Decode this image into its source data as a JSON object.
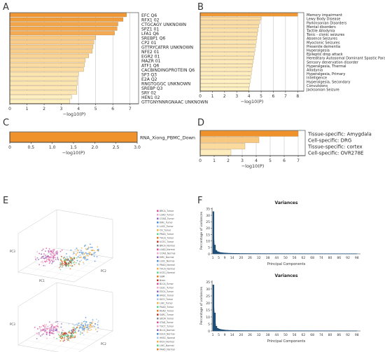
{
  "panels": {
    "A": "A",
    "B": "B",
    "C": "C",
    "D": "D",
    "E": "E",
    "F": "F"
  },
  "colors": {
    "dark_orange": "#f0922b",
    "light_yellow": "#fff7cc",
    "pca_blue": "#1f4e79"
  },
  "chart_data": [
    {
      "panel": "A",
      "type": "bar",
      "orientation": "horizontal",
      "categories": [
        "EFC Q6",
        "RFX1 02",
        "CTGCAGY UNKNOWN",
        "SPZ1 01",
        "LFA1 Q6",
        "SREBP1 Q6",
        "CP2 01",
        "GTTRYCATRR UNKNOWN",
        "NFE2 01",
        "EGR2 01",
        "MAZR 01",
        "ATF1 Q6",
        "CACBINDINGPROTEIN Q6",
        "SP3 Q3",
        "E2A Q2",
        "RNGTGGGC UNKNOWN",
        "SREBP Q3",
        "SRY 02",
        "HEN1 02",
        "GTTGNYNNRGNAAC UNKNOWN"
      ],
      "values": [
        6.8,
        6.6,
        6.3,
        6.25,
        6.1,
        5.0,
        4.9,
        4.85,
        4.8,
        4.6,
        4.4,
        4.35,
        4.3,
        4.0,
        3.95,
        3.95,
        3.9,
        3.9,
        3.6,
        3.5
      ],
      "xlabel": "−log10(P)",
      "xlim": [
        0,
        7.5
      ],
      "xticks": [
        "0",
        "1",
        "2",
        "3",
        "4",
        "5",
        "6",
        "7"
      ]
    },
    {
      "panel": "B",
      "type": "bar",
      "orientation": "horizontal",
      "categories": [
        "Memory impairment",
        "Lewy Body Disease",
        "Parkinsonian Disorders",
        "Mental disorders",
        "Tactile Allodynia",
        "Tonic - clonic seizures",
        "Absence Seizures",
        "Myoclonic Seizures",
        "Presenile dementia",
        "Hyperalgesia",
        "Epileptic drop attack",
        "Hereditary Autosomal Dominant Spastic Paraplegia",
        "Sensory denervation disorder",
        "Hyperalgesia, Thermal",
        "Allodynia",
        "Hyperalgesia, Primary",
        "Intelligence",
        "Hyperalgesia, Secondary",
        "Convulsions",
        "Jacksonian Seizure"
      ],
      "values": [
        8.0,
        5.0,
        4.9,
        4.8,
        4.75,
        4.7,
        4.65,
        4.6,
        4.55,
        4.5,
        4.45,
        4.4,
        4.35,
        4.3,
        4.25,
        4.2,
        4.15,
        4.1,
        4.05,
        4.0
      ],
      "xlabel": "−log10(P)",
      "xlim": [
        0,
        8.5
      ],
      "xticks": [
        "0",
        "1",
        "2",
        "3",
        "4",
        "5",
        "6",
        "7",
        "8"
      ]
    },
    {
      "panel": "C",
      "type": "bar",
      "orientation": "horizontal",
      "categories": [
        "RNA_Xiong_PBMC_Down"
      ],
      "values": [
        3.0
      ],
      "xlabel": "−log10(P)",
      "xlim": [
        0,
        3.0
      ],
      "xticks": [
        "0",
        "0.5",
        "1.0",
        "1.5",
        "2.0",
        "2.5",
        "3.0"
      ]
    },
    {
      "panel": "D",
      "type": "bar",
      "orientation": "horizontal",
      "categories": [
        "Tissue-specific: Amygdala",
        "Cell-specific: DRG",
        "Tissue-specific: cortex",
        "Cell-specific: OVR278E"
      ],
      "values": [
        7.0,
        4.2,
        3.2,
        2.2
      ],
      "xlabel": "−log10(P)",
      "xlim": [
        0,
        7.5
      ],
      "xticks": [
        "0",
        "1",
        "2",
        "3",
        "4",
        "5",
        "6",
        "7"
      ]
    },
    {
      "panel": "F-top",
      "type": "bar",
      "title": "Variances",
      "xlabel": "Principal Components",
      "ylabel": "Percentage of variances",
      "xticks": [
        "1",
        "5",
        "9",
        "14",
        "20",
        "26",
        "32",
        "38",
        "44",
        "50",
        "56",
        "62",
        "68",
        "74",
        "80",
        "86",
        "92",
        "98"
      ],
      "yticks": [
        "0",
        "5",
        "10",
        "15",
        "20",
        "25",
        "30",
        "35"
      ],
      "ylim": [
        0,
        36
      ],
      "x": [
        1,
        2,
        3,
        4,
        5,
        6,
        7,
        8,
        9,
        10,
        12,
        14,
        16,
        18,
        20,
        25,
        30,
        40,
        50,
        60,
        70,
        80,
        90,
        98
      ],
      "values": [
        33,
        7,
        2.8,
        1.8,
        1.4,
        1.1,
        0.9,
        0.8,
        0.7,
        0.6,
        0.5,
        0.45,
        0.4,
        0.35,
        0.3,
        0.28,
        0.25,
        0.22,
        0.2,
        0.18,
        0.16,
        0.14,
        0.12,
        0.1
      ]
    },
    {
      "panel": "F-bottom",
      "type": "bar",
      "title": "Variances",
      "xlabel": "Principal Components",
      "ylabel": "Percentage of variances",
      "xticks": [
        "1",
        "5",
        "9",
        "14",
        "20",
        "26",
        "32",
        "38",
        "44",
        "50",
        "56",
        "62",
        "68",
        "74",
        "80",
        "86",
        "92",
        "98"
      ],
      "yticks": [
        "0",
        "5",
        "10",
        "15",
        "20",
        "25",
        "30",
        "35"
      ],
      "ylim": [
        0,
        36
      ],
      "x": [
        1,
        2,
        3,
        4,
        5,
        6,
        7,
        8,
        9,
        10,
        12,
        14,
        16,
        18,
        20,
        25,
        30,
        40,
        50,
        60,
        70,
        80,
        90,
        98
      ],
      "values": [
        33,
        13,
        3.5,
        2.0,
        1.5,
        1.2,
        1.0,
        0.85,
        0.7,
        0.6,
        0.5,
        0.45,
        0.4,
        0.35,
        0.3,
        0.28,
        0.25,
        0.22,
        0.2,
        0.18,
        0.16,
        0.14,
        0.12,
        0.1
      ]
    },
    {
      "panel": "E-top",
      "type": "scatter",
      "axes": [
        "PC1",
        "PC2",
        "PC3"
      ],
      "legend": [
        "BRCA_Tumor",
        "LUAD_Tumor",
        "COAD_Tumor",
        "KIRC_Tumor",
        "LUSC_Tumor",
        "OV_Tumor",
        "PRAD_Tumor",
        "THCA_Tumor",
        "UCEC_Tumor",
        "BRCA_Normal",
        "LUAD_Normal",
        "COAD_Normal",
        "KIRC_Normal",
        "LUSC_Normal",
        "PRAD_Normal",
        "THCA_Normal",
        "UCEC_Normal",
        "GBM",
        "Brain"
      ]
    },
    {
      "panel": "E-bottom",
      "type": "scatter",
      "axes": [
        "PC1",
        "PC2",
        "PC3"
      ],
      "legend": [
        "BLCA_Tumor",
        "CESC_Tumor",
        "ESCA_Tumor",
        "HNSC_Tumor",
        "KICH_Tumor",
        "LIHC_Tumor",
        "PAAD_Tumor",
        "READ_Tumor",
        "SARC_Tumor",
        "SKCM_Tumor",
        "STAD_Tumor",
        "TGCT_Tumor",
        "BLCA_Normal",
        "ESCA_Normal",
        "HNSC_Normal",
        "KICH_Normal",
        "LIHC_Normal",
        "PAAD_Normal",
        "STAD_Normal",
        "SKCM_metastatic_site_only_PS",
        "Brain_Cortex",
        "Nerve"
      ]
    }
  ]
}
